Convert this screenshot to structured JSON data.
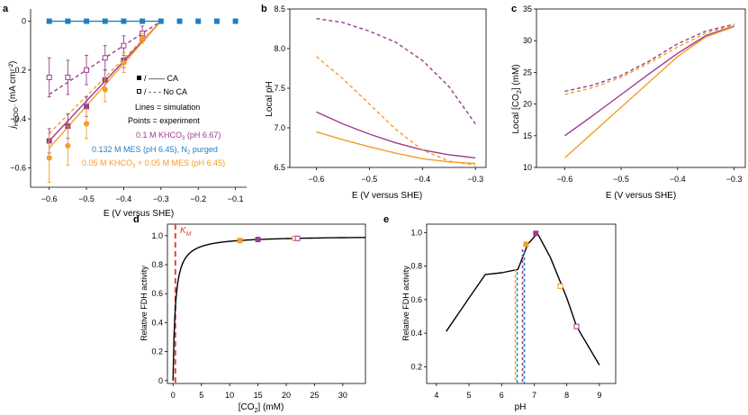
{
  "colors": {
    "purple": "#9b3d8e",
    "blue": "#1f7fc1",
    "orange": "#f59d2a",
    "red_dash": "#e8423a",
    "axis": "#000000"
  },
  "chart_data": [
    {
      "panel": "a",
      "type": "line",
      "xlabel": "E (V versus SHE)",
      "ylabel_main": "j",
      "ylabel_sub": "HCOO⁻",
      "ylabel_unit": "(mA cm⁻²)",
      "xlim": [
        -0.65,
        -0.07
      ],
      "ylim": [
        -0.68,
        0.05
      ],
      "xticks": [
        -0.6,
        -0.5,
        -0.4,
        -0.3,
        -0.2,
        -0.1
      ],
      "xtick_labels": [
        "−0.6",
        "−0.5",
        "−0.4",
        "−0.3",
        "−0.2",
        "−0.1"
      ],
      "yticks": [
        0,
        -0.2,
        -0.4,
        -0.6
      ],
      "ytick_labels": [
        "0",
        "−0.2",
        "−0.4",
        "−0.6"
      ],
      "legend": {
        "ca": "/ —— CA",
        "noca": "/ - - - No CA",
        "lines": "Lines = simulation",
        "points": "Points = experiment",
        "khco3_main": "0.1 M KHCO",
        "khco3_sub": "3",
        "khco3_rest": " (pH 6.67)",
        "mes_main": "0.132 M MES (pH 6.45), N",
        "mes_sub": "2",
        "mes_rest": " purged",
        "mix_main": "0.05 M KHCO",
        "mix_sub": "3",
        "mix_rest": " + 0.05 M MES (pH 6.45)"
      },
      "series": [
        {
          "name": "0.1 M KHCO3 CA sim",
          "color": "purple",
          "style": "solid",
          "x": [
            -0.6,
            -0.3
          ],
          "y": [
            -0.49,
            0.0
          ]
        },
        {
          "name": "0.1 M KHCO3 No CA sim",
          "color": "purple",
          "style": "dashed",
          "x": [
            -0.6,
            -0.55,
            -0.5,
            -0.45,
            -0.4,
            -0.35,
            -0.3
          ],
          "y": [
            -0.3,
            -0.25,
            -0.2,
            -0.15,
            -0.1,
            -0.05,
            0.0
          ]
        },
        {
          "name": "MES sim",
          "color": "blue",
          "style": "solid",
          "x": [
            -0.6,
            -0.3
          ],
          "y": [
            0.0,
            0.0
          ]
        },
        {
          "name": "mix CA sim",
          "color": "orange",
          "style": "solid",
          "x": [
            -0.6,
            -0.3
          ],
          "y": [
            -0.52,
            0.0
          ]
        },
        {
          "name": "mix No CA sim",
          "color": "orange",
          "style": "dashed",
          "x": [
            -0.6,
            -0.3
          ],
          "y": [
            -0.46,
            0.0
          ]
        }
      ],
      "points": [
        {
          "name": "0.1 M KHCO3 CA exp",
          "color": "purple",
          "filled": true,
          "x": [
            -0.6,
            -0.55,
            -0.5,
            -0.45,
            -0.4,
            -0.35
          ],
          "y": [
            -0.49,
            -0.43,
            -0.35,
            -0.24,
            -0.16,
            -0.07
          ],
          "err": [
            0.05,
            0.05,
            0.04,
            0.04,
            0.03,
            0.02
          ]
        },
        {
          "name": "0.1 M KHCO3 No CA exp",
          "color": "purple",
          "filled": false,
          "x": [
            -0.6,
            -0.55,
            -0.5,
            -0.45,
            -0.4,
            -0.35
          ],
          "y": [
            -0.23,
            -0.23,
            -0.2,
            -0.15,
            -0.1,
            -0.05
          ],
          "err": [
            0.08,
            0.07,
            0.06,
            0.05,
            0.04,
            0.03
          ]
        },
        {
          "name": "MES exp",
          "color": "blue",
          "filled": true,
          "x": [
            -0.6,
            -0.55,
            -0.5,
            -0.45,
            -0.4,
            -0.35,
            -0.3,
            -0.25,
            -0.2,
            -0.15,
            -0.1
          ],
          "y": [
            0,
            0,
            0,
            0,
            0,
            0,
            0,
            0,
            0,
            0,
            0
          ],
          "err": [
            0,
            0,
            0,
            0,
            0,
            0,
            0,
            0,
            0,
            0,
            0
          ]
        },
        {
          "name": "mix CA exp",
          "color": "orange",
          "filled": true,
          "x": [
            -0.6,
            -0.55,
            -0.5,
            -0.45,
            -0.4,
            -0.35
          ],
          "y": [
            -0.56,
            -0.51,
            -0.42,
            -0.28,
            -0.17,
            -0.07
          ],
          "err": [
            0.1,
            0.08,
            0.06,
            0.05,
            0.04,
            0.02
          ]
        }
      ]
    },
    {
      "panel": "b",
      "type": "line",
      "xlabel": "E (V versus SHE)",
      "ylabel": "Local pH",
      "xlim": [
        -0.65,
        -0.28
      ],
      "ylim": [
        6.5,
        8.5
      ],
      "xticks": [
        -0.6,
        -0.5,
        -0.4,
        -0.3
      ],
      "xtick_labels": [
        "−0.6",
        "−0.5",
        "−0.4",
        "−0.3"
      ],
      "yticks": [
        6.5,
        7.0,
        7.5,
        8.0,
        8.5
      ],
      "ytick_labels": [
        "6.5",
        "7.0",
        "7.5",
        "8.0",
        "8.5"
      ],
      "series": [
        {
          "name": "0.1 M KHCO3 No CA",
          "color": "purple",
          "style": "dashed",
          "x": [
            -0.6,
            -0.55,
            -0.5,
            -0.45,
            -0.4,
            -0.35,
            -0.3
          ],
          "y": [
            8.38,
            8.33,
            8.22,
            8.08,
            7.85,
            7.52,
            7.05
          ]
        },
        {
          "name": "0.1 M KHCO3 CA",
          "color": "purple",
          "style": "solid",
          "x": [
            -0.6,
            -0.55,
            -0.5,
            -0.45,
            -0.4,
            -0.35,
            -0.3
          ],
          "y": [
            7.2,
            7.05,
            6.92,
            6.81,
            6.72,
            6.66,
            6.62
          ]
        },
        {
          "name": "mix No CA",
          "color": "orange",
          "style": "dashed",
          "x": [
            -0.6,
            -0.55,
            -0.5,
            -0.45,
            -0.4,
            -0.35,
            -0.3
          ],
          "y": [
            7.9,
            7.62,
            7.3,
            6.98,
            6.72,
            6.58,
            6.53
          ]
        },
        {
          "name": "mix CA",
          "color": "orange",
          "style": "solid",
          "x": [
            -0.6,
            -0.55,
            -0.5,
            -0.45,
            -0.4,
            -0.35,
            -0.3
          ],
          "y": [
            6.95,
            6.85,
            6.76,
            6.68,
            6.61,
            6.57,
            6.55
          ]
        }
      ]
    },
    {
      "panel": "c",
      "type": "line",
      "xlabel": "E (V versus SHE)",
      "ylabel_main": "Local [CO",
      "ylabel_sub": "2",
      "ylabel_rest": "] (mM)",
      "xlim": [
        -0.65,
        -0.28
      ],
      "ylim": [
        10,
        35
      ],
      "xticks": [
        -0.6,
        -0.5,
        -0.4,
        -0.3
      ],
      "xtick_labels": [
        "−0.6",
        "−0.5",
        "−0.4",
        "−0.3"
      ],
      "yticks": [
        10,
        15,
        20,
        25,
        30,
        35
      ],
      "ytick_labels": [
        "10",
        "15",
        "20",
        "25",
        "30",
        "35"
      ],
      "series": [
        {
          "name": "0.1 M KHCO3 No CA",
          "color": "purple",
          "style": "dashed",
          "x": [
            -0.6,
            -0.55,
            -0.5,
            -0.45,
            -0.4,
            -0.35,
            -0.3
          ],
          "y": [
            22.0,
            23.0,
            24.5,
            26.8,
            29.5,
            31.5,
            32.6
          ]
        },
        {
          "name": "mix No CA",
          "color": "orange",
          "style": "dashed",
          "x": [
            -0.6,
            -0.55,
            -0.5,
            -0.45,
            -0.4,
            -0.35,
            -0.3
          ],
          "y": [
            21.5,
            22.6,
            24.2,
            26.5,
            29.0,
            31.2,
            32.5
          ]
        },
        {
          "name": "0.1 M KHCO3 CA",
          "color": "purple",
          "style": "solid",
          "x": [
            -0.6,
            -0.55,
            -0.5,
            -0.45,
            -0.4,
            -0.35,
            -0.3
          ],
          "y": [
            15.0,
            18.2,
            21.5,
            24.8,
            28.0,
            30.8,
            32.3
          ]
        },
        {
          "name": "mix CA",
          "color": "orange",
          "style": "solid",
          "x": [
            -0.6,
            -0.55,
            -0.5,
            -0.45,
            -0.4,
            -0.35,
            -0.3
          ],
          "y": [
            11.5,
            15.5,
            19.5,
            23.5,
            27.5,
            30.6,
            32.2
          ]
        }
      ]
    },
    {
      "panel": "d",
      "type": "line",
      "xlabel_main": "[CO",
      "xlabel_sub": "2",
      "xlabel_rest": "] (mM)",
      "ylabel": "Relative FDH activity",
      "km_label": "K",
      "km_sub": "M",
      "km_value": 0.4,
      "xlim": [
        -1,
        34
      ],
      "ylim": [
        -0.02,
        1.08
      ],
      "xticks": [
        0,
        5,
        10,
        15,
        20,
        25,
        30
      ],
      "xtick_labels": [
        "0",
        "5",
        "10",
        "15",
        "20",
        "25",
        "30"
      ],
      "yticks": [
        0.0,
        0.2,
        0.4,
        0.6,
        0.8,
        1.0
      ],
      "ytick_labels": [
        "0",
        "0.2",
        "0.4",
        "0.6",
        "0.8",
        "1.0"
      ],
      "curve": {
        "type": "michaelis-menten",
        "vmax": 1.0,
        "km": 0.4,
        "x_from": 0.0,
        "x_to": 34
      },
      "markers": [
        {
          "x": 11.8,
          "y": 0.967,
          "color": "orange",
          "filled": true
        },
        {
          "x": 15.0,
          "y": 0.974,
          "color": "purple",
          "filled": true
        },
        {
          "x": 21.5,
          "y": 0.982,
          "color": "orange",
          "filled": false
        },
        {
          "x": 22.0,
          "y": 0.982,
          "color": "purple",
          "filled": false
        }
      ]
    },
    {
      "panel": "e",
      "type": "line",
      "xlabel": "pH",
      "ylabel": "Relative FDH activity",
      "xlim": [
        3.7,
        9.5
      ],
      "ylim": [
        0.1,
        1.05
      ],
      "xticks": [
        4,
        5,
        6,
        7,
        8,
        9
      ],
      "xtick_labels": [
        "4",
        "5",
        "6",
        "7",
        "8",
        "9"
      ],
      "yticks": [
        0.2,
        0.4,
        0.6,
        0.8,
        1.0
      ],
      "ytick_labels": [
        "0.2",
        "0.4",
        "0.6",
        "0.8",
        "1.0"
      ],
      "series": [
        {
          "name": "activity",
          "color": "axis",
          "style": "solid",
          "x": [
            4.3,
            5.0,
            5.5,
            6.0,
            6.5,
            6.8,
            7.1,
            7.5,
            8.0,
            8.3,
            9.0
          ],
          "y": [
            0.41,
            0.61,
            0.75,
            0.76,
            0.78,
            0.93,
            0.995,
            0.85,
            0.61,
            0.44,
            0.21
          ]
        }
      ],
      "vlines": [
        {
          "x": 6.45,
          "y": 0.78,
          "colors": [
            "orange",
            "blue"
          ]
        },
        {
          "x": 6.67,
          "y": 0.9,
          "colors": [
            "purple",
            "blue"
          ]
        }
      ],
      "markers": [
        {
          "x": 6.75,
          "y": 0.93,
          "color": "orange",
          "filled": true
        },
        {
          "x": 7.05,
          "y": 0.995,
          "color": "purple",
          "filled": true
        },
        {
          "x": 7.8,
          "y": 0.68,
          "color": "orange",
          "filled": false
        },
        {
          "x": 8.3,
          "y": 0.44,
          "color": "purple",
          "filled": false
        }
      ]
    }
  ],
  "panel_labels": [
    "a",
    "b",
    "c",
    "d",
    "e"
  ]
}
